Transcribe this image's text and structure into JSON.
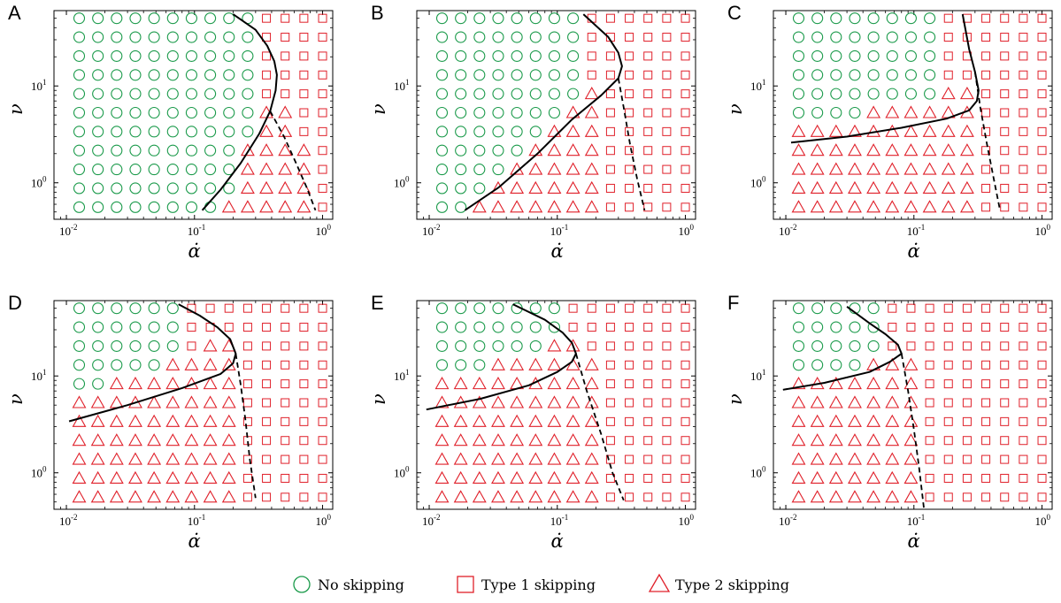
{
  "colors": {
    "no_skipping": "#1a9a4a",
    "type1": "#e0202a",
    "type2": "#e0202a",
    "boundary": "#000000"
  },
  "legend": {
    "items": [
      {
        "symbol": "circle-icon",
        "label": "No skipping"
      },
      {
        "symbol": "square-icon",
        "label": "Type 1 skipping"
      },
      {
        "symbol": "triangle-icon",
        "label": "Type 2 skipping"
      }
    ]
  },
  "chart_data": [
    {
      "type": "scatter",
      "panel": "A",
      "xlabel": "α̇",
      "ylabel": "ν",
      "x_scale": "log",
      "y_scale": "log",
      "xlim": [
        0.008,
        1.2
      ],
      "ylim": [
        0.42,
        60
      ],
      "x_ticks": [
        "10^-2",
        "10^-1",
        "10^0"
      ],
      "y_ticks": [
        "10^0",
        "10^1"
      ],
      "circle_cols": 8,
      "circle_min_row": [
        10,
        10,
        10,
        10,
        10,
        10,
        10,
        10,
        10,
        10,
        10,
        10,
        10,
        10
      ],
      "circle_max_row": [
        -1,
        -1,
        -1,
        -1,
        -1,
        -1,
        -1,
        10,
        10,
        10,
        6,
        5,
        5,
        -1
      ],
      "tri_rows": [
        [
          0,
          1,
          2,
          3,
          4,
          5,
          6,
          7,
          8,
          9,
          10,
          11,
          12,
          13
        ]
      ],
      "grid": "auto",
      "circles_by_col": [
        [
          0,
          10
        ],
        [
          0,
          10
        ],
        [
          0,
          10
        ],
        [
          0,
          10
        ],
        [
          0,
          10
        ],
        [
          0,
          10
        ],
        [
          0,
          10
        ],
        [
          0,
          10
        ],
        [
          1,
          10
        ],
        [
          4,
          10
        ],
        [
          -1,
          -1
        ],
        [
          -1,
          -1
        ],
        [
          -1,
          -1
        ],
        [
          -1,
          -1
        ]
      ],
      "triangles_by_col": [
        [
          -1,
          -1
        ],
        [
          -1,
          -1
        ],
        [
          -1,
          -1
        ],
        [
          -1,
          -1
        ],
        [
          -1,
          -1
        ],
        [
          -1,
          -1
        ],
        [
          -1,
          -1
        ],
        [
          -1,
          -1
        ],
        [
          0,
          0
        ],
        [
          0,
          3
        ],
        [
          0,
          5
        ],
        [
          0,
          5
        ],
        [
          0,
          3
        ],
        [
          -1,
          -1
        ]
      ],
      "solid_curve": [
        [
          0.115,
          0.52
        ],
        [
          0.16,
          0.85
        ],
        [
          0.23,
          1.6
        ],
        [
          0.32,
          3.2
        ],
        [
          0.39,
          5.5
        ],
        [
          0.43,
          9
        ],
        [
          0.44,
          13
        ],
        [
          0.42,
          18
        ],
        [
          0.37,
          26
        ],
        [
          0.3,
          38
        ],
        [
          0.2,
          55
        ]
      ],
      "dashed_curve": [
        [
          0.39,
          5.5
        ],
        [
          0.5,
          3
        ],
        [
          0.62,
          1.6
        ],
        [
          0.75,
          0.9
        ],
        [
          0.88,
          0.52
        ]
      ]
    },
    {
      "type": "scatter",
      "panel": "B",
      "xlabel": "α̇",
      "ylabel": "ν",
      "x_scale": "log",
      "y_scale": "log",
      "xlim": [
        0.008,
        1.2
      ],
      "ylim": [
        0.42,
        60
      ],
      "x_ticks": [
        "10^-2",
        "10^-1",
        "10^0"
      ],
      "y_ticks": [
        "10^0",
        "10^1"
      ],
      "circles_by_col": [
        [
          0,
          10
        ],
        [
          0,
          10
        ],
        [
          1,
          10
        ],
        [
          2,
          10
        ],
        [
          3,
          10
        ],
        [
          4,
          10
        ],
        [
          5,
          10
        ],
        [
          6,
          10
        ],
        [
          -1,
          -1
        ],
        [
          -1,
          -1
        ],
        [
          -1,
          -1
        ],
        [
          -1,
          -1
        ],
        [
          -1,
          -1
        ],
        [
          -1,
          -1
        ]
      ],
      "triangles_by_col": [
        [
          -1,
          -1
        ],
        [
          -1,
          -1
        ],
        [
          0,
          0
        ],
        [
          0,
          1
        ],
        [
          0,
          2
        ],
        [
          0,
          3
        ],
        [
          0,
          4
        ],
        [
          0,
          5
        ],
        [
          0,
          6
        ],
        [
          -1,
          -1
        ],
        [
          -1,
          -1
        ],
        [
          -1,
          -1
        ],
        [
          -1,
          -1
        ],
        [
          -1,
          -1
        ]
      ],
      "solid_curve": [
        [
          0.019,
          0.52
        ],
        [
          0.035,
          0.9
        ],
        [
          0.07,
          2
        ],
        [
          0.13,
          4.5
        ],
        [
          0.22,
          8
        ],
        [
          0.3,
          12
        ],
        [
          0.32,
          16
        ],
        [
          0.3,
          22
        ],
        [
          0.25,
          32
        ],
        [
          0.16,
          55
        ]
      ],
      "dashed_curve": [
        [
          0.3,
          12
        ],
        [
          0.33,
          6
        ],
        [
          0.37,
          2.5
        ],
        [
          0.42,
          1.1
        ],
        [
          0.48,
          0.52
        ]
      ]
    },
    {
      "type": "scatter",
      "panel": "C",
      "xlabel": "α̇",
      "ylabel": "ν",
      "x_scale": "log",
      "y_scale": "log",
      "xlim": [
        0.008,
        1.2
      ],
      "ylim": [
        0.42,
        60
      ],
      "x_ticks": [
        "10^-2",
        "10^-1",
        "10^0"
      ],
      "y_ticks": [
        "10^0",
        "10^1"
      ],
      "circles_by_col": [
        [
          5,
          10
        ],
        [
          5,
          10
        ],
        [
          5,
          10
        ],
        [
          5,
          10
        ],
        [
          6,
          10
        ],
        [
          6,
          10
        ],
        [
          6,
          10
        ],
        [
          6,
          10
        ],
        [
          -1,
          -1
        ],
        [
          -1,
          -1
        ],
        [
          -1,
          -1
        ],
        [
          -1,
          -1
        ],
        [
          -1,
          -1
        ],
        [
          -1,
          -1
        ]
      ],
      "triangles_by_col": [
        [
          0,
          4
        ],
        [
          0,
          4
        ],
        [
          0,
          4
        ],
        [
          0,
          4
        ],
        [
          0,
          5
        ],
        [
          0,
          5
        ],
        [
          0,
          5
        ],
        [
          0,
          5
        ],
        [
          0,
          6
        ],
        [
          0,
          6
        ],
        [
          -1,
          -1
        ],
        [
          -1,
          -1
        ],
        [
          -1,
          -1
        ],
        [
          -1,
          -1
        ]
      ],
      "solid_curve": [
        [
          0.011,
          2.6
        ],
        [
          0.03,
          3
        ],
        [
          0.08,
          3.7
        ],
        [
          0.18,
          4.6
        ],
        [
          0.27,
          5.6
        ],
        [
          0.31,
          7
        ],
        [
          0.32,
          9
        ],
        [
          0.3,
          14
        ],
        [
          0.27,
          24
        ],
        [
          0.24,
          55
        ]
      ],
      "dashed_curve": [
        [
          0.3,
          14
        ],
        [
          0.33,
          6
        ],
        [
          0.37,
          2.6
        ],
        [
          0.42,
          1.1
        ],
        [
          0.47,
          0.52
        ]
      ]
    },
    {
      "type": "scatter",
      "panel": "D",
      "xlabel": "α̇",
      "ylabel": "ν",
      "x_scale": "log",
      "y_scale": "log",
      "xlim": [
        0.008,
        1.2
      ],
      "ylim": [
        0.42,
        60
      ],
      "x_ticks": [
        "10^-2",
        "10^-1",
        "10^0"
      ],
      "y_ticks": [
        "10^0",
        "10^1"
      ],
      "circles_by_col": [
        [
          6,
          10
        ],
        [
          6,
          10
        ],
        [
          7,
          10
        ],
        [
          7,
          10
        ],
        [
          7,
          10
        ],
        [
          8,
          10
        ],
        [
          -1,
          -1
        ],
        [
          -1,
          -1
        ],
        [
          -1,
          -1
        ],
        [
          -1,
          -1
        ],
        [
          -1,
          -1
        ],
        [
          -1,
          -1
        ],
        [
          -1,
          -1
        ],
        [
          -1,
          -1
        ]
      ],
      "triangles_by_col": [
        [
          0,
          5
        ],
        [
          0,
          5
        ],
        [
          0,
          6
        ],
        [
          0,
          6
        ],
        [
          0,
          6
        ],
        [
          0,
          7
        ],
        [
          0,
          7
        ],
        [
          0,
          8
        ],
        [
          0,
          8
        ],
        [
          -1,
          -1
        ],
        [
          -1,
          -1
        ],
        [
          -1,
          -1
        ],
        [
          -1,
          -1
        ],
        [
          -1,
          -1
        ]
      ],
      "solid_curve": [
        [
          0.0105,
          3.4
        ],
        [
          0.03,
          5
        ],
        [
          0.08,
          7.5
        ],
        [
          0.16,
          10.5
        ],
        [
          0.2,
          13.5
        ],
        [
          0.21,
          17
        ],
        [
          0.19,
          24
        ],
        [
          0.15,
          32
        ],
        [
          0.11,
          42
        ],
        [
          0.075,
          55
        ]
      ],
      "dashed_curve": [
        [
          0.21,
          17
        ],
        [
          0.23,
          8
        ],
        [
          0.25,
          3.5
        ],
        [
          0.27,
          1.4
        ],
        [
          0.3,
          0.55
        ]
      ]
    },
    {
      "type": "scatter",
      "panel": "E",
      "xlabel": "α̇",
      "ylabel": "ν",
      "x_scale": "log",
      "y_scale": "log",
      "xlim": [
        0.008,
        1.2
      ],
      "ylim": [
        0.42,
        60
      ],
      "x_ticks": [
        "10^-2",
        "10^-1",
        "10^0"
      ],
      "y_ticks": [
        "10^0",
        "10^1"
      ],
      "circles_by_col": [
        [
          7,
          10
        ],
        [
          7,
          10
        ],
        [
          7,
          10
        ],
        [
          8,
          10
        ],
        [
          8,
          10
        ],
        [
          8,
          10
        ],
        [
          9,
          10
        ],
        [
          -1,
          -1
        ],
        [
          -1,
          -1
        ],
        [
          -1,
          -1
        ],
        [
          -1,
          -1
        ],
        [
          -1,
          -1
        ],
        [
          -1,
          -1
        ],
        [
          -1,
          -1
        ]
      ],
      "triangles_by_col": [
        [
          0,
          6
        ],
        [
          0,
          6
        ],
        [
          0,
          6
        ],
        [
          0,
          7
        ],
        [
          0,
          7
        ],
        [
          0,
          7
        ],
        [
          0,
          8
        ],
        [
          0,
          8
        ],
        [
          0,
          7
        ],
        [
          -1,
          -1
        ],
        [
          -1,
          -1
        ],
        [
          -1,
          -1
        ],
        [
          -1,
          -1
        ],
        [
          -1,
          -1
        ]
      ],
      "solid_curve": [
        [
          0.0095,
          4.5
        ],
        [
          0.025,
          5.8
        ],
        [
          0.06,
          8
        ],
        [
          0.1,
          11
        ],
        [
          0.13,
          14
        ],
        [
          0.14,
          17
        ],
        [
          0.13,
          22
        ],
        [
          0.11,
          28
        ],
        [
          0.08,
          38
        ],
        [
          0.045,
          55
        ]
      ],
      "dashed_curve": [
        [
          0.14,
          17
        ],
        [
          0.17,
          7
        ],
        [
          0.22,
          2.5
        ],
        [
          0.27,
          1
        ],
        [
          0.33,
          0.52
        ]
      ]
    },
    {
      "type": "scatter",
      "panel": "F",
      "xlabel": "α̇",
      "ylabel": "ν",
      "x_scale": "log",
      "y_scale": "log",
      "xlim": [
        0.008,
        1.2
      ],
      "ylim": [
        0.42,
        60
      ],
      "x_ticks": [
        "10^-2",
        "10^-1",
        "10^0"
      ],
      "y_ticks": [
        "10^0",
        "10^1"
      ],
      "circles_by_col": [
        [
          7,
          10
        ],
        [
          7,
          10
        ],
        [
          7,
          10
        ],
        [
          7,
          10
        ],
        [
          8,
          10
        ],
        [
          -1,
          -1
        ],
        [
          -1,
          -1
        ],
        [
          -1,
          -1
        ],
        [
          -1,
          -1
        ],
        [
          -1,
          -1
        ],
        [
          -1,
          -1
        ],
        [
          -1,
          -1
        ],
        [
          -1,
          -1
        ],
        [
          -1,
          -1
        ]
      ],
      "triangles_by_col": [
        [
          0,
          6
        ],
        [
          0,
          6
        ],
        [
          0,
          6
        ],
        [
          0,
          6
        ],
        [
          0,
          7
        ],
        [
          0,
          7
        ],
        [
          0,
          7
        ],
        [
          -1,
          -1
        ],
        [
          -1,
          -1
        ],
        [
          -1,
          -1
        ],
        [
          -1,
          -1
        ],
        [
          -1,
          -1
        ],
        [
          -1,
          -1
        ],
        [
          -1,
          -1
        ]
      ],
      "solid_curve": [
        [
          0.0095,
          7.2
        ],
        [
          0.02,
          8.5
        ],
        [
          0.045,
          11
        ],
        [
          0.065,
          14
        ],
        [
          0.08,
          17
        ],
        [
          0.075,
          21
        ],
        [
          0.06,
          27
        ],
        [
          0.045,
          35
        ],
        [
          0.03,
          52
        ]
      ],
      "dashed_curve": [
        [
          0.08,
          17
        ],
        [
          0.09,
          7
        ],
        [
          0.1,
          2.8
        ],
        [
          0.11,
          1.1
        ],
        [
          0.12,
          0.42
        ]
      ]
    }
  ]
}
